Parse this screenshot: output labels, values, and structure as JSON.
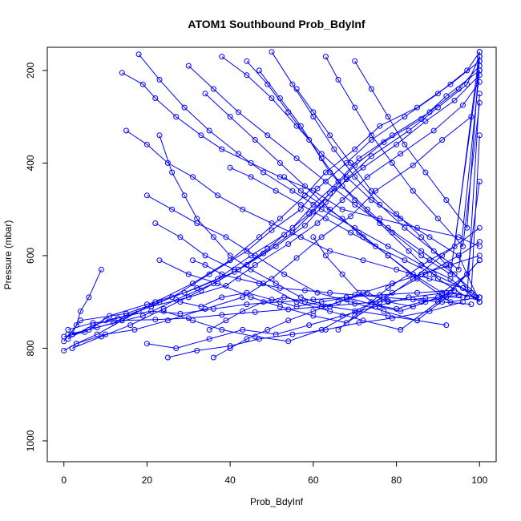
{
  "chart_data": {
    "type": "scatter",
    "title": "ATOM1 Southbound Prob_BdyInf",
    "xlabel": "Prob_BdyInf",
    "ylabel": "Pressure (mbar)",
    "xlim": [
      -4,
      104
    ],
    "ylim": [
      1045,
      150
    ],
    "y_reversed": true,
    "x_ticks": [
      0,
      20,
      40,
      60,
      80,
      100
    ],
    "y_ticks": [
      200,
      400,
      600,
      800,
      1000
    ],
    "marker": "open-circle",
    "line_connected": true,
    "grid": false,
    "legend": "none",
    "series_color": "#0000ff",
    "series": [
      {
        "x": [
          0,
          3,
          8,
          14,
          22,
          31,
          40,
          47,
          52,
          58,
          63,
          70,
          76,
          85,
          93,
          100
        ],
        "y": [
          805,
          790,
          770,
          740,
          700,
          660,
          610,
          560,
          520,
          470,
          420,
          370,
          320,
          280,
          230,
          180
        ]
      },
      {
        "x": [
          1,
          6,
          12,
          18,
          26,
          35,
          44,
          50,
          57,
          61,
          68,
          74,
          82,
          90,
          97,
          100
        ],
        "y": [
          770,
          760,
          745,
          720,
          690,
          640,
          590,
          545,
          500,
          455,
          400,
          350,
          300,
          250,
          200,
          160
        ]
      },
      {
        "x": [
          2,
          9,
          16,
          24,
          33,
          42,
          49,
          55,
          60,
          66,
          71,
          79,
          88,
          95,
          100
        ],
        "y": [
          800,
          775,
          750,
          715,
          675,
          630,
          585,
          540,
          490,
          440,
          390,
          340,
          290,
          240,
          190
        ]
      },
      {
        "x": [
          0,
          5,
          11,
          20,
          29,
          37,
          45,
          53,
          59,
          64,
          72,
          80,
          87,
          94,
          100
        ],
        "y": [
          775,
          765,
          730,
          705,
          680,
          650,
          600,
          555,
          510,
          465,
          410,
          360,
          310,
          265,
          210
        ]
      },
      {
        "x": [
          1,
          7,
          13,
          21,
          30,
          39,
          46,
          54,
          61,
          67,
          73,
          81,
          89,
          96,
          100
        ],
        "y": [
          780,
          750,
          735,
          710,
          690,
          665,
          620,
          575,
          530,
          480,
          430,
          380,
          330,
          275,
          225
        ]
      },
      {
        "x": [
          3,
          10,
          17,
          25,
          34,
          43,
          50,
          56,
          62,
          69,
          75,
          84,
          91,
          98
        ],
        "y": [
          790,
          770,
          760,
          740,
          715,
          690,
          650,
          605,
          560,
          515,
          460,
          405,
          350,
          300
        ]
      },
      {
        "x": [
          0,
          4,
          15,
          23,
          32,
          41,
          48,
          55,
          60,
          65,
          70,
          77,
          86,
          92,
          100
        ],
        "y": [
          785,
          740,
          725,
          700,
          670,
          635,
          595,
          550,
          505,
          455,
          405,
          355,
          305,
          255,
          200
        ]
      },
      {
        "x": [
          2,
          8,
          19,
          27,
          36,
          44,
          51,
          58,
          63,
          68,
          74,
          83,
          90,
          97,
          100
        ],
        "y": [
          770,
          755,
          730,
          695,
          660,
          620,
          580,
          535,
          485,
          435,
          385,
          330,
          280,
          230,
          170
        ]
      },
      {
        "x": [
          14,
          19,
          22,
          27,
          33,
          38,
          45,
          52,
          60,
          67,
          76,
          85,
          95,
          100
        ],
        "y": [
          205,
          230,
          260,
          300,
          340,
          370,
          400,
          430,
          460,
          500,
          520,
          540,
          560,
          580
        ]
      },
      {
        "x": [
          15,
          20,
          25,
          31,
          37,
          43,
          50,
          57,
          64,
          72,
          80,
          88,
          96,
          100
        ],
        "y": [
          330,
          360,
          400,
          430,
          470,
          500,
          530,
          560,
          590,
          610,
          630,
          650,
          670,
          690
        ]
      },
      {
        "x": [
          18,
          23,
          29,
          35,
          42,
          48,
          55,
          62,
          70,
          78,
          86,
          93,
          100
        ],
        "y": [
          165,
          220,
          280,
          330,
          380,
          420,
          460,
          500,
          540,
          580,
          620,
          650,
          700
        ]
      },
      {
        "x": [
          20,
          26,
          32,
          39,
          46,
          53,
          61,
          69,
          77,
          85,
          92,
          100
        ],
        "y": [
          470,
          500,
          530,
          560,
          600,
          640,
          680,
          700,
          720,
          740,
          690,
          610
        ]
      },
      {
        "x": [
          22,
          28,
          34,
          41,
          48,
          56,
          64,
          72,
          81,
          90,
          97,
          100
        ],
        "y": [
          530,
          560,
          600,
          630,
          660,
          700,
          720,
          740,
          760,
          700,
          640,
          440
        ]
      },
      {
        "x": [
          23,
          30,
          37,
          45,
          52,
          60,
          68,
          76,
          84,
          91,
          100
        ],
        "y": [
          610,
          640,
          660,
          690,
          710,
          730,
          745,
          700,
          650,
          600,
          540
        ]
      },
      {
        "x": [
          24,
          31,
          38,
          46,
          54,
          62,
          70,
          79,
          87,
          95,
          100
        ],
        "y": [
          720,
          740,
          760,
          775,
          785,
          760,
          720,
          680,
          640,
          600,
          700
        ]
      },
      {
        "x": [
          20,
          27,
          35,
          43,
          51,
          59,
          67,
          75,
          83,
          92,
          100
        ],
        "y": [
          790,
          800,
          780,
          760,
          770,
          750,
          730,
          710,
          690,
          680,
          690
        ]
      },
      {
        "x": [
          25,
          32,
          40,
          47,
          55,
          63,
          71,
          79,
          88,
          96
        ],
        "y": [
          820,
          805,
          795,
          780,
          770,
          760,
          745,
          735,
          720,
          700
        ]
      },
      {
        "x": [
          30,
          36,
          42,
          49,
          56,
          63,
          70,
          78,
          86,
          94,
          100
        ],
        "y": [
          190,
          240,
          290,
          340,
          390,
          440,
          490,
          540,
          590,
          640,
          690
        ]
      },
      {
        "x": [
          34,
          40,
          46,
          52,
          58,
          64,
          71,
          78,
          85,
          93,
          100
        ],
        "y": [
          250,
          300,
          350,
          400,
          450,
          500,
          550,
          600,
          650,
          700,
          690
        ]
      },
      {
        "x": [
          38,
          44,
          50,
          56,
          62,
          68,
          74,
          81,
          88,
          95,
          100
        ],
        "y": [
          170,
          210,
          260,
          320,
          380,
          430,
          480,
          520,
          560,
          600,
          570
        ]
      },
      {
        "x": [
          40,
          45,
          51,
          57,
          63,
          69,
          75,
          82,
          89,
          96,
          100
        ],
        "y": [
          410,
          430,
          460,
          490,
          520,
          550,
          580,
          610,
          640,
          670,
          700
        ]
      },
      {
        "x": [
          44,
          49,
          54,
          59,
          64,
          70,
          76,
          83,
          90,
          97,
          100
        ],
        "y": [
          180,
          230,
          290,
          350,
          420,
          480,
          530,
          590,
          650,
          690,
          250
        ]
      },
      {
        "x": [
          47,
          52,
          57,
          62,
          67,
          73,
          79,
          86,
          93,
          100
        ],
        "y": [
          200,
          260,
          320,
          390,
          450,
          500,
          550,
          600,
          640,
          180
        ]
      },
      {
        "x": [
          50,
          55,
          60,
          65,
          70,
          76,
          82,
          89,
          95,
          100
        ],
        "y": [
          160,
          230,
          300,
          370,
          430,
          490,
          540,
          590,
          630,
          200
        ]
      },
      {
        "x": [
          53,
          57,
          62,
          67,
          72,
          78,
          84,
          91,
          97,
          100
        ],
        "y": [
          430,
          460,
          490,
          520,
          560,
          600,
          640,
          680,
          640,
          610
        ]
      },
      {
        "x": [
          56,
          60,
          64,
          69,
          74,
          80,
          86,
          92,
          98,
          100
        ],
        "y": [
          240,
          290,
          340,
          400,
          460,
          510,
          560,
          620,
          680,
          340
        ]
      },
      {
        "x": [
          60,
          63,
          67,
          71,
          76,
          81,
          87,
          93,
          99,
          100
        ],
        "y": [
          560,
          600,
          640,
          680,
          710,
          720,
          700,
          680,
          690,
          700
        ]
      },
      {
        "x": [
          63,
          66,
          70,
          74,
          79,
          84,
          90,
          96,
          100
        ],
        "y": [
          170,
          220,
          280,
          340,
          400,
          460,
          520,
          580,
          270
        ]
      },
      {
        "x": [
          66,
          70,
          74,
          78,
          83,
          88,
          94,
          100
        ],
        "y": [
          760,
          730,
          700,
          670,
          640,
          610,
          580,
          160
        ]
      },
      {
        "x": [
          70,
          74,
          78,
          82,
          87,
          92,
          97,
          100
        ],
        "y": [
          180,
          240,
          300,
          360,
          420,
          480,
          540,
          170
        ]
      },
      {
        "x": [
          35,
          39,
          43,
          48,
          53,
          58,
          63,
          68,
          73,
          78,
          84,
          90,
          96
        ],
        "y": [
          760,
          740,
          720,
          700,
          690,
          700,
          710,
          695,
          680,
          700,
          710,
          690,
          690
        ]
      },
      {
        "x": [
          28,
          33,
          38,
          44,
          50,
          56,
          62,
          68,
          74,
          80,
          86,
          92
        ],
        "y": [
          700,
          710,
          690,
          680,
          695,
          710,
          700,
          690,
          705,
          715,
          700,
          690
        ]
      },
      {
        "x": [
          10,
          15,
          21,
          28,
          36,
          44,
          52,
          60,
          68,
          76,
          85,
          94
        ],
        "y": [
          740,
          730,
          720,
          725,
          715,
          705,
          700,
          695,
          690,
          685,
          680,
          675
        ]
      },
      {
        "x": [
          1,
          7,
          14,
          22,
          30,
          38,
          46,
          54,
          62,
          70,
          78,
          87,
          95
        ],
        "y": [
          760,
          745,
          740,
          738,
          735,
          728,
          722,
          716,
          710,
          704,
          698,
          692,
          686
        ]
      },
      {
        "x": [
          9,
          6,
          4,
          3,
          2
        ],
        "y": [
          630,
          690,
          720,
          750,
          770
        ]
      },
      {
        "x": [
          23,
          26,
          29,
          32,
          36,
          40,
          45,
          51,
          57,
          64,
          71,
          78,
          85,
          92
        ],
        "y": [
          340,
          420,
          470,
          520,
          560,
          600,
          630,
          660,
          690,
          710,
          720,
          730,
          740,
          750
        ]
      },
      {
        "x": [
          31,
          34,
          38,
          42,
          47,
          52,
          58,
          64,
          70,
          77,
          84,
          91,
          98
        ],
        "y": [
          610,
          620,
          640,
          650,
          660,
          670,
          675,
          680,
          685,
          690,
          695,
          700,
          705
        ]
      },
      {
        "x": [
          36,
          40,
          44,
          49,
          54,
          60,
          66,
          72,
          79,
          86,
          93,
          100
        ],
        "y": [
          820,
          800,
          780,
          760,
          740,
          720,
          700,
          680,
          660,
          640,
          620,
          600
        ]
      }
    ]
  }
}
